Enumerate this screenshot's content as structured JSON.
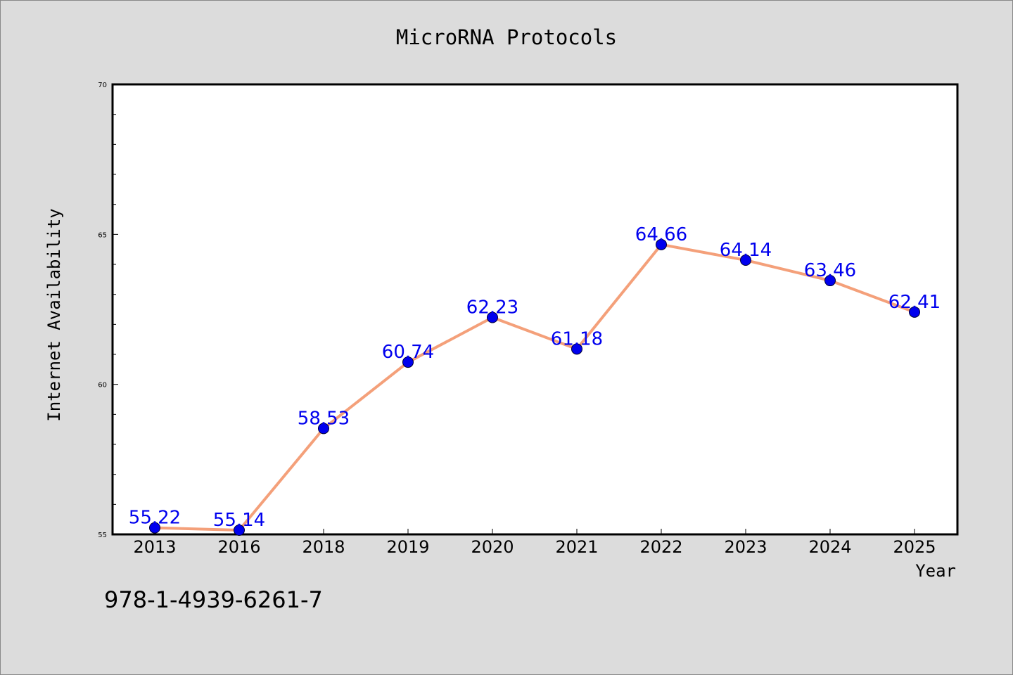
{
  "chart_data": {
    "type": "line",
    "title": "MicroRNA Protocols",
    "xlabel": "Year",
    "ylabel": "Internet Availability",
    "categories": [
      "2013",
      "2016",
      "2018",
      "2019",
      "2020",
      "2021",
      "2022",
      "2023",
      "2024",
      "2025"
    ],
    "series": [
      {
        "values": [
          55.22,
          55.14,
          58.53,
          60.74,
          62.23,
          61.18,
          64.66,
          64.14,
          63.46,
          62.41
        ],
        "data_labels": [
          "55.22",
          "55.14",
          "58.53",
          "60.74",
          "62.23",
          "61.18",
          "64.66",
          "64.14",
          "63.46",
          "62.41"
        ],
        "line_color": "#f4a07a",
        "marker_color": "#0000ee"
      }
    ],
    "ylim": [
      55,
      70
    ],
    "yticks": [
      "55",
      "60",
      "65",
      "70"
    ],
    "grid": false,
    "label_color": "#0000ee"
  },
  "footer": {
    "isbn": "978-1-4939-6261-7"
  }
}
